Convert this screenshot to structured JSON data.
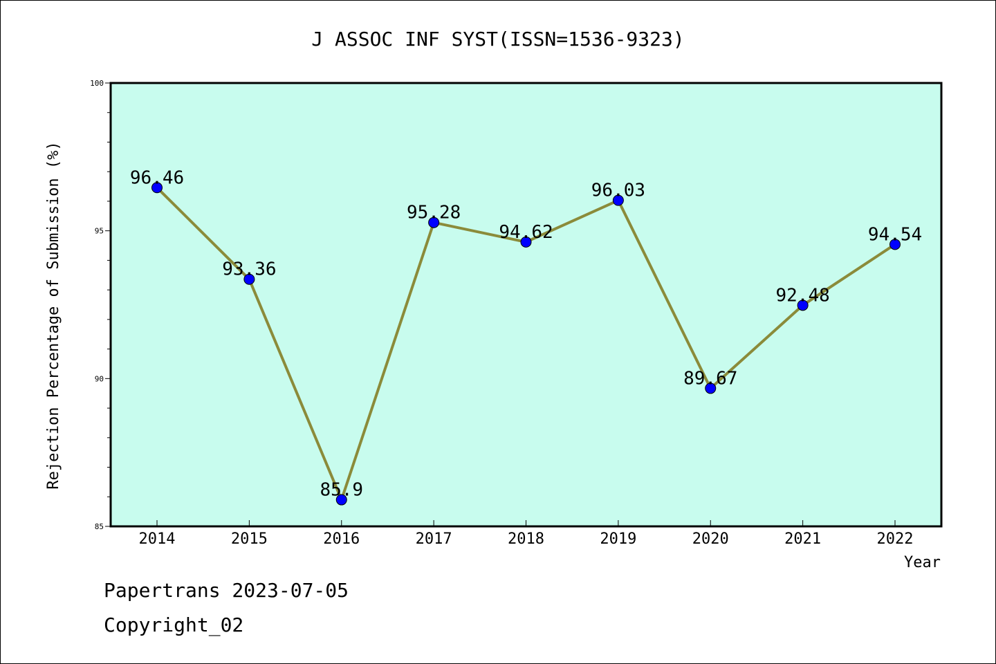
{
  "chart_data": {
    "type": "line",
    "title": "J ASSOC INF SYST(ISSN=1536-9323)",
    "xlabel": "Year",
    "ylabel": "Rejection Percentage of Submission (%)",
    "categories": [
      "2014",
      "2015",
      "2016",
      "2017",
      "2018",
      "2019",
      "2020",
      "2021",
      "2022"
    ],
    "values": [
      96.46,
      93.36,
      85.9,
      95.28,
      94.62,
      96.03,
      89.67,
      92.48,
      94.54
    ],
    "data_labels": [
      "96.46",
      "93.36",
      "85.9",
      "95.28",
      "94.62",
      "96.03",
      "89.67",
      "92.48",
      "94.54"
    ],
    "ylim": [
      85,
      100
    ],
    "yticks": [
      "85",
      "90",
      "95",
      "100"
    ],
    "grid": false,
    "colors": {
      "plot_background": "#c8fcee",
      "line": "#8b8b3a",
      "marker": "#0000ff"
    }
  },
  "footer": {
    "line1": "Papertrans 2023-07-05",
    "line2": "Copyright_02"
  }
}
